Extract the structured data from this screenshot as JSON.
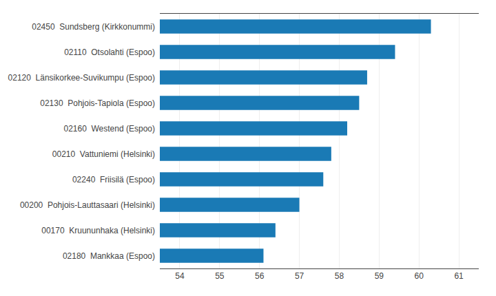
{
  "chart_data": {
    "type": "bar",
    "orientation": "horizontal",
    "categories": [
      "02450  Sundsberg (Kirkkonummi)",
      "02110  Otsolahti (Espoo)",
      "02120  Länsikorkee-Suvikumpu (Espoo)",
      "02130  Pohjois-Tapiola (Espoo)",
      "02160  Westend (Espoo)",
      "00210  Vattuniemi (Helsinki)",
      "02240  Friisilä (Espoo)",
      "00200  Pohjois-Lauttasaari (Helsinki)",
      "00170  Kruununhaka (Helsinki)",
      "02180  Mankkaa (Espoo)"
    ],
    "values": [
      60.3,
      59.4,
      58.7,
      58.5,
      58.2,
      57.8,
      57.6,
      57.0,
      56.4,
      56.1
    ],
    "color": "#1a7ab5",
    "xlim": [
      53.5,
      61.5
    ],
    "xticks": [
      54,
      55,
      56,
      57,
      58,
      59,
      60,
      61
    ],
    "grid": true
  }
}
